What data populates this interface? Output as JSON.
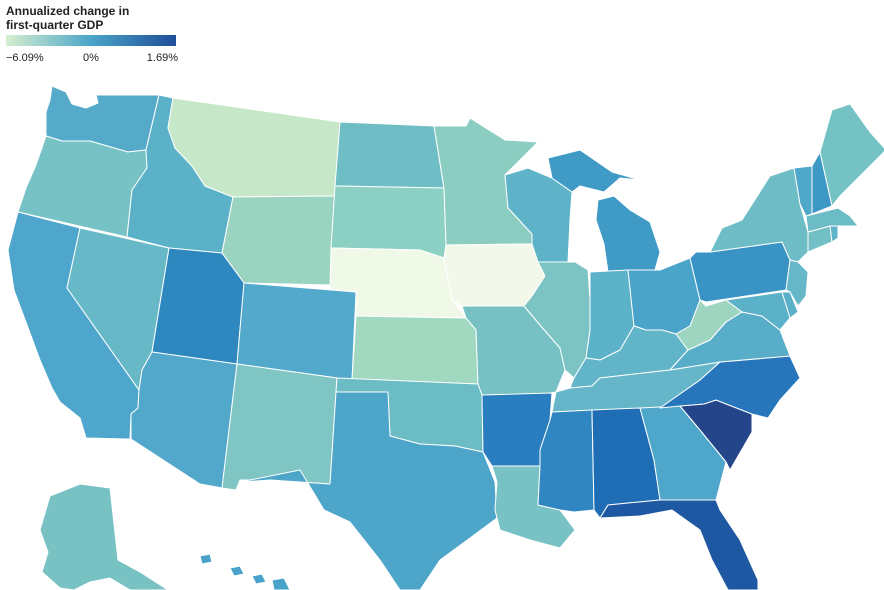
{
  "legend": {
    "title": "Annualized change in first-quarter GDP",
    "min_label": "−6.09%",
    "mid_label": "0%",
    "max_label": "1.69%",
    "min_value": -6.09,
    "mid_value": 0,
    "max_value": 1.69,
    "colors": {
      "min": "#d6efcf",
      "mid": "#4aa5c9",
      "max": "#1f4e98"
    }
  },
  "states": [
    {
      "code": "WA",
      "color": "#56aac9"
    },
    {
      "code": "OR",
      "color": "#76c2c5"
    },
    {
      "code": "CA",
      "color": "#4fa6cc"
    },
    {
      "code": "NV",
      "color": "#68b9c8"
    },
    {
      "code": "ID",
      "color": "#5bb2c8"
    },
    {
      "code": "MT",
      "color": "#c7e8c8"
    },
    {
      "code": "WY",
      "color": "#9bd3c1"
    },
    {
      "code": "UT",
      "color": "#2e88c0"
    },
    {
      "code": "AZ",
      "color": "#52a8cb"
    },
    {
      "code": "CO",
      "color": "#52a9cb"
    },
    {
      "code": "NM",
      "color": "#7fc5c3"
    },
    {
      "code": "ND",
      "color": "#6fbec6"
    },
    {
      "code": "SD",
      "color": "#8ccfc3"
    },
    {
      "code": "NE",
      "color": "#f0f8e8"
    },
    {
      "code": "KS",
      "color": "#a0d8c0"
    },
    {
      "code": "OK",
      "color": "#6cbcc6"
    },
    {
      "code": "TX",
      "color": "#4ea5ca"
    },
    {
      "code": "MN",
      "color": "#8ccdc2"
    },
    {
      "code": "IA",
      "color": "#f2f9ea"
    },
    {
      "code": "MO",
      "color": "#77c0c4"
    },
    {
      "code": "AR",
      "color": "#2a7dbe"
    },
    {
      "code": "LA",
      "color": "#78c1c4"
    },
    {
      "code": "WI",
      "color": "#5eb3c8"
    },
    {
      "code": "IL",
      "color": "#7cc3c3"
    },
    {
      "code": "MS",
      "color": "#2f86c1"
    },
    {
      "code": "MI",
      "color": "#3f9ac6"
    },
    {
      "code": "IN",
      "color": "#5cb2c8"
    },
    {
      "code": "KY",
      "color": "#62b5c8"
    },
    {
      "code": "TN",
      "color": "#64b6c8"
    },
    {
      "code": "AL",
      "color": "#1f6db4"
    },
    {
      "code": "OH",
      "color": "#4aa4ca"
    },
    {
      "code": "GA",
      "color": "#4ea6ca"
    },
    {
      "code": "FL",
      "color": "#1f58a2"
    },
    {
      "code": "SC",
      "color": "#25458a"
    },
    {
      "code": "NC",
      "color": "#2776bb"
    },
    {
      "code": "VA",
      "color": "#58adc8"
    },
    {
      "code": "WV",
      "color": "#9ed5c0"
    },
    {
      "code": "PA",
      "color": "#3994c5"
    },
    {
      "code": "NY",
      "color": "#6ebdc6"
    },
    {
      "code": "MD",
      "color": "#5ab1c8"
    },
    {
      "code": "DE",
      "color": "#5ab0c8"
    },
    {
      "code": "NJ",
      "color": "#66b8c8"
    },
    {
      "code": "CT",
      "color": "#72bfc5"
    },
    {
      "code": "RI",
      "color": "#5eb3c8"
    },
    {
      "code": "MA",
      "color": "#6cbcc6"
    },
    {
      "code": "VT",
      "color": "#4fa7ca"
    },
    {
      "code": "NH",
      "color": "#3e98c6"
    },
    {
      "code": "ME",
      "color": "#75c2c5"
    },
    {
      "code": "AK",
      "color": "#78c2c4"
    },
    {
      "code": "HI",
      "color": "#48a2ca"
    }
  ]
}
